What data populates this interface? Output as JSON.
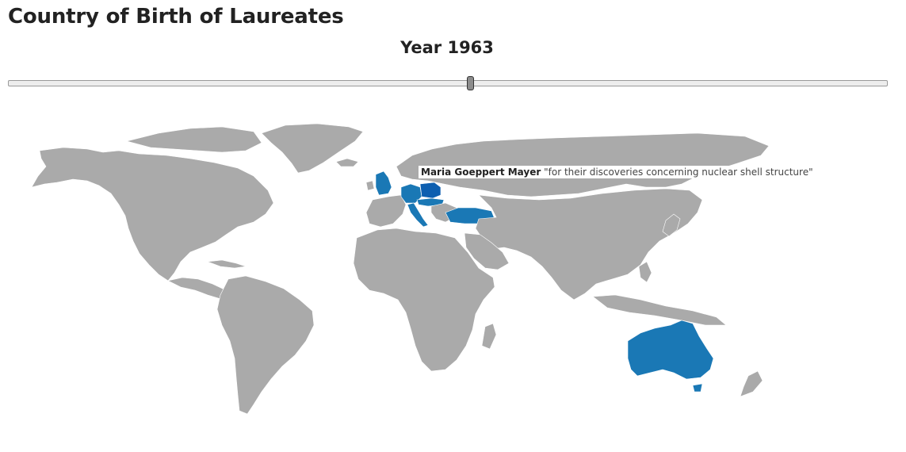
{
  "page": {
    "title": "Country of Birth of Laureates"
  },
  "year_label": "Year 1963",
  "slider": {
    "value": 1963
  },
  "tooltip": {
    "name": "Maria Goeppert Mayer",
    "motivation": "\"for their discoveries concerning nuclear shell structure\""
  },
  "map": {
    "base_color": "#aaaaaa",
    "highlight_color": "#1a78b5",
    "highlighted_countries": [
      "United Kingdom",
      "Germany",
      "Poland",
      "Czechoslovakia",
      "Italy",
      "Turkey",
      "Australia"
    ]
  }
}
